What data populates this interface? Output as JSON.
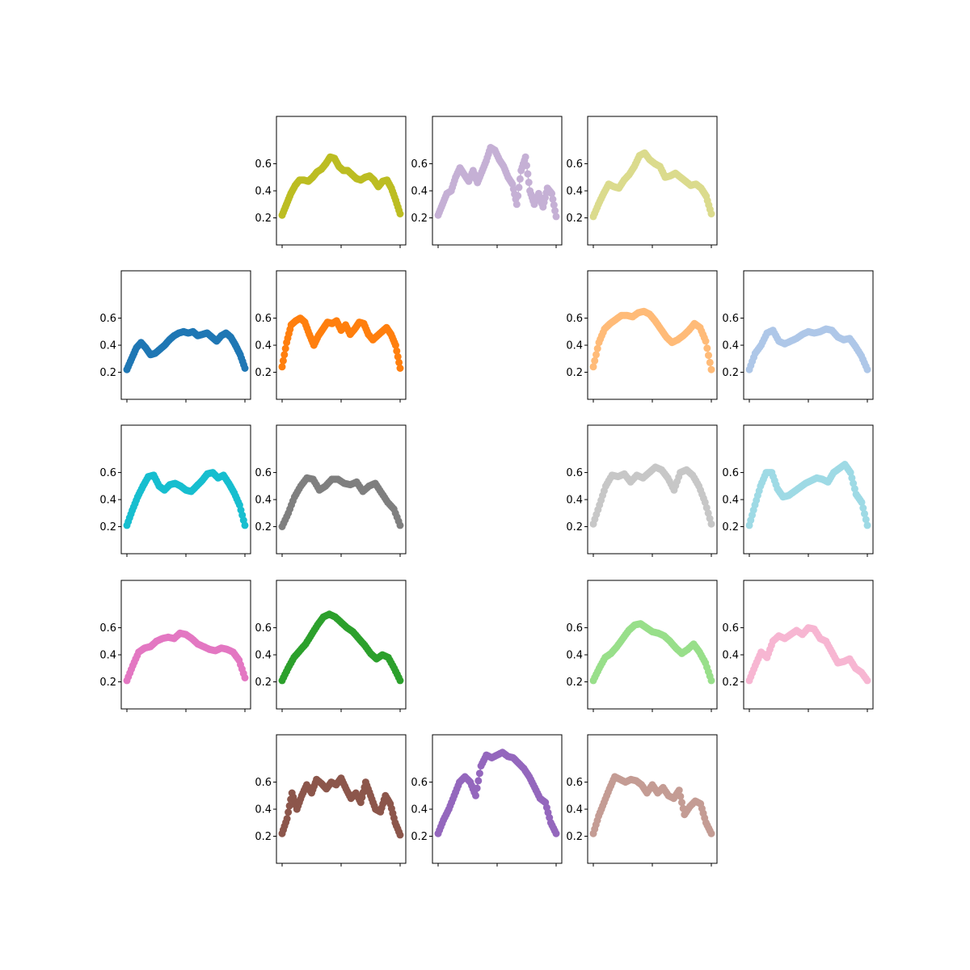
{
  "figure": {
    "background": "#ffffff",
    "grid": false,
    "legend": "none"
  },
  "chart_data": [
    {
      "type": "line",
      "row": 0,
      "col": 1,
      "color": "#bcbd22",
      "ylim": [
        0.0,
        0.95
      ],
      "yticks": [
        "0.2",
        "0.4",
        "0.6"
      ],
      "xticks": [
        "",
        "",
        ""
      ],
      "series": [
        {
          "values": [
            0.22,
            0.3,
            0.38,
            0.44,
            0.48,
            0.48,
            0.47,
            0.5,
            0.54,
            0.56,
            0.6,
            0.65,
            0.64,
            0.58,
            0.55,
            0.55,
            0.52,
            0.49,
            0.48,
            0.5,
            0.51,
            0.48,
            0.43,
            0.47,
            0.48,
            0.42,
            0.33,
            0.23
          ]
        }
      ]
    },
    {
      "type": "line",
      "row": 0,
      "col": 2,
      "color": "#c5b0d5",
      "ylim": [
        0.0,
        0.95
      ],
      "yticks": [
        "0.2",
        "0.4",
        "0.6"
      ],
      "xticks": [
        "",
        "",
        ""
      ],
      "series": [
        {
          "values": [
            0.22,
            0.3,
            0.38,
            0.4,
            0.5,
            0.57,
            0.52,
            0.47,
            0.55,
            0.46,
            0.54,
            0.62,
            0.72,
            0.7,
            0.63,
            0.58,
            0.5,
            0.45,
            0.3,
            0.55,
            0.65,
            0.4,
            0.3,
            0.38,
            0.28,
            0.42,
            0.38,
            0.21
          ]
        }
      ]
    },
    {
      "type": "line",
      "row": 0,
      "col": 3,
      "color": "#dbdb8d",
      "ylim": [
        0.0,
        0.95
      ],
      "yticks": [
        "0.2",
        "0.4",
        "0.6"
      ],
      "xticks": [
        "",
        "",
        ""
      ],
      "series": [
        {
          "values": [
            0.21,
            0.3,
            0.38,
            0.45,
            0.43,
            0.42,
            0.48,
            0.52,
            0.58,
            0.66,
            0.68,
            0.63,
            0.6,
            0.58,
            0.5,
            0.51,
            0.53,
            0.5,
            0.47,
            0.44,
            0.45,
            0.42,
            0.36,
            0.23
          ]
        }
      ]
    },
    {
      "type": "line",
      "row": 1,
      "col": 0,
      "color": "#1f77b4",
      "ylim": [
        0.0,
        0.95
      ],
      "yticks": [
        "0.2",
        "0.4",
        "0.6"
      ],
      "xticks": [
        "",
        "",
        ""
      ],
      "series": [
        {
          "values": [
            0.22,
            0.3,
            0.38,
            0.42,
            0.38,
            0.33,
            0.34,
            0.37,
            0.4,
            0.44,
            0.47,
            0.49,
            0.5,
            0.49,
            0.5,
            0.47,
            0.48,
            0.49,
            0.46,
            0.43,
            0.47,
            0.49,
            0.46,
            0.4,
            0.33,
            0.23
          ]
        }
      ]
    },
    {
      "type": "line",
      "row": 1,
      "col": 1,
      "color": "#ff7f0e",
      "ylim": [
        0.0,
        0.95
      ],
      "yticks": [
        "0.2",
        "0.4",
        "0.6"
      ],
      "xticks": [
        "",
        "",
        ""
      ],
      "series": [
        {
          "values": [
            0.24,
            0.42,
            0.55,
            0.58,
            0.6,
            0.57,
            0.48,
            0.4,
            0.47,
            0.52,
            0.57,
            0.56,
            0.58,
            0.51,
            0.55,
            0.48,
            0.52,
            0.57,
            0.56,
            0.48,
            0.44,
            0.47,
            0.5,
            0.53,
            0.48,
            0.4,
            0.23
          ]
        }
      ]
    },
    {
      "type": "line",
      "row": 1,
      "col": 3,
      "color": "#ffbb78",
      "ylim": [
        0.0,
        0.95
      ],
      "yticks": [
        "0.2",
        "0.4",
        "0.6"
      ],
      "xticks": [
        "",
        "",
        ""
      ],
      "series": [
        {
          "values": [
            0.24,
            0.42,
            0.52,
            0.56,
            0.59,
            0.62,
            0.62,
            0.61,
            0.64,
            0.65,
            0.63,
            0.58,
            0.52,
            0.46,
            0.42,
            0.44,
            0.47,
            0.51,
            0.56,
            0.53,
            0.43,
            0.22
          ]
        }
      ]
    },
    {
      "type": "line",
      "row": 1,
      "col": 4,
      "color": "#aec7e8",
      "ylim": [
        0.0,
        0.95
      ],
      "yticks": [
        "0.2",
        "0.4",
        "0.6"
      ],
      "xticks": [
        "",
        "",
        ""
      ],
      "series": [
        {
          "values": [
            0.22,
            0.34,
            0.4,
            0.49,
            0.51,
            0.43,
            0.41,
            0.43,
            0.45,
            0.48,
            0.5,
            0.49,
            0.5,
            0.52,
            0.51,
            0.46,
            0.44,
            0.45,
            0.39,
            0.32,
            0.22
          ]
        }
      ]
    },
    {
      "type": "line",
      "row": 2,
      "col": 0,
      "color": "#17becf",
      "ylim": [
        0.0,
        0.95
      ],
      "yticks": [
        "0.2",
        "0.4",
        "0.6"
      ],
      "xticks": [
        "",
        "",
        ""
      ],
      "series": [
        {
          "values": [
            0.21,
            0.32,
            0.42,
            0.5,
            0.57,
            0.58,
            0.5,
            0.47,
            0.51,
            0.52,
            0.5,
            0.47,
            0.46,
            0.5,
            0.54,
            0.59,
            0.6,
            0.56,
            0.58,
            0.52,
            0.45,
            0.36,
            0.21
          ]
        }
      ]
    },
    {
      "type": "line",
      "row": 2,
      "col": 1,
      "color": "#7f7f7f",
      "ylim": [
        0.0,
        0.95
      ],
      "yticks": [
        "0.2",
        "0.4",
        "0.6"
      ],
      "xticks": [
        "",
        "",
        ""
      ],
      "series": [
        {
          "values": [
            0.2,
            0.3,
            0.42,
            0.5,
            0.56,
            0.55,
            0.47,
            0.5,
            0.55,
            0.55,
            0.52,
            0.51,
            0.53,
            0.46,
            0.5,
            0.52,
            0.45,
            0.38,
            0.33,
            0.21
          ]
        }
      ]
    },
    {
      "type": "line",
      "row": 2,
      "col": 3,
      "color": "#c7c7c7",
      "ylim": [
        0.0,
        0.95
      ],
      "yticks": [
        "0.2",
        "0.4",
        "0.6"
      ],
      "xticks": [
        "",
        "",
        ""
      ],
      "series": [
        {
          "values": [
            0.22,
            0.36,
            0.5,
            0.58,
            0.57,
            0.59,
            0.53,
            0.58,
            0.56,
            0.6,
            0.64,
            0.62,
            0.56,
            0.47,
            0.6,
            0.62,
            0.58,
            0.5,
            0.38,
            0.22
          ]
        }
      ]
    },
    {
      "type": "line",
      "row": 2,
      "col": 4,
      "color": "#9edae5",
      "ylim": [
        0.0,
        0.95
      ],
      "yticks": [
        "0.2",
        "0.4",
        "0.6"
      ],
      "xticks": [
        "",
        "",
        ""
      ],
      "series": [
        {
          "values": [
            0.21,
            0.36,
            0.5,
            0.6,
            0.6,
            0.48,
            0.42,
            0.43,
            0.46,
            0.49,
            0.52,
            0.54,
            0.56,
            0.55,
            0.53,
            0.6,
            0.63,
            0.66,
            0.6,
            0.44,
            0.38,
            0.21
          ]
        }
      ]
    },
    {
      "type": "line",
      "row": 3,
      "col": 0,
      "color": "#e377c2",
      "ylim": [
        0.0,
        0.95
      ],
      "yticks": [
        "0.2",
        "0.4",
        "0.6"
      ],
      "xticks": [
        "",
        "",
        ""
      ],
      "series": [
        {
          "values": [
            0.21,
            0.32,
            0.42,
            0.45,
            0.46,
            0.5,
            0.52,
            0.53,
            0.52,
            0.56,
            0.55,
            0.52,
            0.48,
            0.46,
            0.44,
            0.43,
            0.45,
            0.44,
            0.42,
            0.36,
            0.23
          ]
        }
      ]
    },
    {
      "type": "line",
      "row": 3,
      "col": 1,
      "color": "#2ca02c",
      "ylim": [
        0.0,
        0.95
      ],
      "yticks": [
        "0.2",
        "0.4",
        "0.6"
      ],
      "xticks": [
        "",
        "",
        ""
      ],
      "series": [
        {
          "values": [
            0.21,
            0.3,
            0.38,
            0.43,
            0.48,
            0.55,
            0.62,
            0.68,
            0.7,
            0.68,
            0.64,
            0.6,
            0.57,
            0.52,
            0.47,
            0.41,
            0.37,
            0.4,
            0.38,
            0.3,
            0.21
          ]
        }
      ]
    },
    {
      "type": "line",
      "row": 3,
      "col": 3,
      "color": "#98df8a",
      "ylim": [
        0.0,
        0.95
      ],
      "yticks": [
        "0.2",
        "0.4",
        "0.6"
      ],
      "xticks": [
        "",
        "",
        ""
      ],
      "series": [
        {
          "values": [
            0.21,
            0.3,
            0.38,
            0.41,
            0.46,
            0.52,
            0.58,
            0.62,
            0.63,
            0.6,
            0.57,
            0.56,
            0.54,
            0.5,
            0.45,
            0.41,
            0.44,
            0.48,
            0.42,
            0.34,
            0.21
          ]
        }
      ]
    },
    {
      "type": "line",
      "row": 3,
      "col": 4,
      "color": "#f7b6d2",
      "ylim": [
        0.0,
        0.95
      ],
      "yticks": [
        "0.2",
        "0.4",
        "0.6"
      ],
      "xticks": [
        "",
        "",
        ""
      ],
      "series": [
        {
          "values": [
            0.21,
            0.32,
            0.42,
            0.38,
            0.5,
            0.54,
            0.52,
            0.55,
            0.58,
            0.55,
            0.6,
            0.59,
            0.52,
            0.5,
            0.42,
            0.34,
            0.35,
            0.37,
            0.3,
            0.27,
            0.21
          ]
        }
      ]
    },
    {
      "type": "line",
      "row": 4,
      "col": 1,
      "color": "#8c564b",
      "ylim": [
        0.0,
        0.95
      ],
      "yticks": [
        "0.2",
        "0.4",
        "0.6"
      ],
      "xticks": [
        "",
        "",
        ""
      ],
      "series": [
        {
          "values": [
            0.22,
            0.33,
            0.52,
            0.4,
            0.5,
            0.58,
            0.52,
            0.62,
            0.59,
            0.55,
            0.6,
            0.58,
            0.63,
            0.55,
            0.48,
            0.52,
            0.45,
            0.6,
            0.5,
            0.4,
            0.38,
            0.5,
            0.44,
            0.3,
            0.21
          ]
        }
      ]
    },
    {
      "type": "line",
      "row": 4,
      "col": 2,
      "color": "#9467bd",
      "ylim": [
        0.0,
        0.95
      ],
      "yticks": [
        "0.2",
        "0.4",
        "0.6"
      ],
      "xticks": [
        "",
        "",
        ""
      ],
      "series": [
        {
          "values": [
            0.22,
            0.32,
            0.4,
            0.5,
            0.6,
            0.64,
            0.6,
            0.5,
            0.72,
            0.8,
            0.78,
            0.8,
            0.82,
            0.79,
            0.78,
            0.74,
            0.7,
            0.64,
            0.56,
            0.48,
            0.45,
            0.3,
            0.22
          ]
        }
      ]
    },
    {
      "type": "line",
      "row": 4,
      "col": 3,
      "color": "#c49c94",
      "ylim": [
        0.0,
        0.95
      ],
      "yticks": [
        "0.2",
        "0.4",
        "0.6"
      ],
      "xticks": [
        "",
        "",
        ""
      ],
      "series": [
        {
          "values": [
            0.22,
            0.35,
            0.45,
            0.55,
            0.64,
            0.62,
            0.6,
            0.62,
            0.61,
            0.58,
            0.52,
            0.58,
            0.52,
            0.56,
            0.5,
            0.48,
            0.54,
            0.36,
            0.42,
            0.46,
            0.44,
            0.3,
            0.22
          ]
        }
      ]
    }
  ]
}
